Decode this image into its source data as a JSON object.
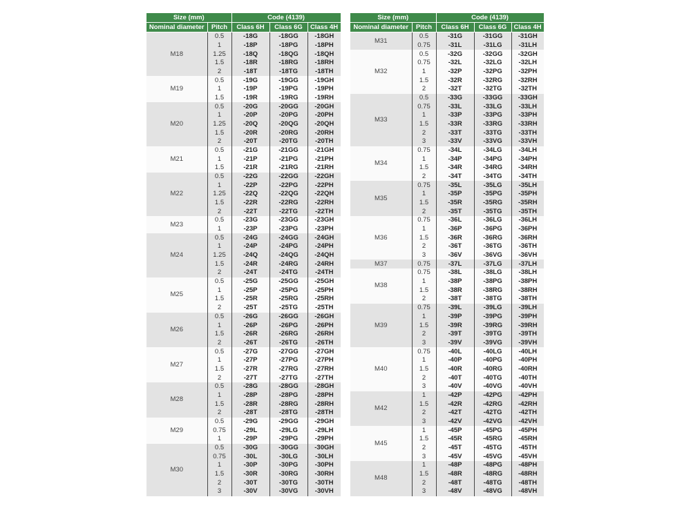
{
  "header": {
    "size": "Size (mm)",
    "code": "Code (4139)",
    "nominal": "Nominal diameter",
    "pitch": "Pitch",
    "c6h": "Class 6H",
    "c6g": "Class 6G",
    "c4h": "Class 4H"
  },
  "tables": [
    {
      "groups": [
        {
          "d": "M18",
          "rows": [
            [
              "0.5",
              "-18G",
              "-18GG",
              "-18GH"
            ],
            [
              "1",
              "-18P",
              "-18PG",
              "-18PH"
            ],
            [
              "1.25",
              "-18Q",
              "-18QG",
              "-18QH"
            ],
            [
              "1.5",
              "-18R",
              "-18RG",
              "-18RH"
            ],
            [
              "2",
              "-18T",
              "-18TG",
              "-18TH"
            ]
          ]
        },
        {
          "d": "M19",
          "rows": [
            [
              "0.5",
              "-19G",
              "-19GG",
              "-19GH"
            ],
            [
              "1",
              "-19P",
              "-19PG",
              "-19PH"
            ],
            [
              "1.5",
              "-19R",
              "-19RG",
              "-19RH"
            ]
          ]
        },
        {
          "d": "M20",
          "rows": [
            [
              "0.5",
              "-20G",
              "-20GG",
              "-20GH"
            ],
            [
              "1",
              "-20P",
              "-20PG",
              "-20PH"
            ],
            [
              "1.25",
              "-20Q",
              "-20QG",
              "-20QH"
            ],
            [
              "1.5",
              "-20R",
              "-20RG",
              "-20RH"
            ],
            [
              "2",
              "-20T",
              "-20TG",
              "-20TH"
            ]
          ]
        },
        {
          "d": "M21",
          "rows": [
            [
              "0.5",
              "-21G",
              "-21GG",
              "-21GH"
            ],
            [
              "1",
              "-21P",
              "-21PG",
              "-21PH"
            ],
            [
              "1.5",
              "-21R",
              "-21RG",
              "-21RH"
            ]
          ]
        },
        {
          "d": "M22",
          "rows": [
            [
              "0.5",
              "-22G",
              "-22GG",
              "-22GH"
            ],
            [
              "1",
              "-22P",
              "-22PG",
              "-22PH"
            ],
            [
              "1.25",
              "-22Q",
              "-22QG",
              "-22QH"
            ],
            [
              "1.5",
              "-22R",
              "-22RG",
              "-22RH"
            ],
            [
              "2",
              "-22T",
              "-22TG",
              "-22TH"
            ]
          ]
        },
        {
          "d": "M23",
          "rows": [
            [
              "0.5",
              "-23G",
              "-23GG",
              "-23GH"
            ],
            [
              "1",
              "-23P",
              "-23PG",
              "-23PH"
            ]
          ]
        },
        {
          "d": "M24",
          "rows": [
            [
              "0.5",
              "-24G",
              "-24GG",
              "-24GH"
            ],
            [
              "1",
              "-24P",
              "-24PG",
              "-24PH"
            ],
            [
              "1.25",
              "-24Q",
              "-24QG",
              "-24QH"
            ],
            [
              "1.5",
              "-24R",
              "-24RG",
              "-24RH"
            ],
            [
              "2",
              "-24T",
              "-24TG",
              "-24TH"
            ]
          ]
        },
        {
          "d": "M25",
          "rows": [
            [
              "0.5",
              "-25G",
              "-25GG",
              "-25GH"
            ],
            [
              "1",
              "-25P",
              "-25PG",
              "-25PH"
            ],
            [
              "1.5",
              "-25R",
              "-25RG",
              "-25RH"
            ],
            [
              "2",
              "-25T",
              "-25TG",
              "-25TH"
            ]
          ]
        },
        {
          "d": "M26",
          "rows": [
            [
              "0.5",
              "-26G",
              "-26GG",
              "-26GH"
            ],
            [
              "1",
              "-26P",
              "-26PG",
              "-26PH"
            ],
            [
              "1.5",
              "-26R",
              "-26RG",
              "-26RH"
            ],
            [
              "2",
              "-26T",
              "-26TG",
              "-26TH"
            ]
          ]
        },
        {
          "d": "M27",
          "rows": [
            [
              "0.5",
              "-27G",
              "-27GG",
              "-27GH"
            ],
            [
              "1",
              "-27P",
              "-27PG",
              "-27PH"
            ],
            [
              "1.5",
              "-27R",
              "-27RG",
              "-27RH"
            ],
            [
              "2",
              "-27T",
              "-27TG",
              "-27TH"
            ]
          ]
        },
        {
          "d": "M28",
          "rows": [
            [
              "0.5",
              "-28G",
              "-28GG",
              "-28GH"
            ],
            [
              "1",
              "-28P",
              "-28PG",
              "-28PH"
            ],
            [
              "1.5",
              "-28R",
              "-28RG",
              "-28RH"
            ],
            [
              "2",
              "-28T",
              "-28TG",
              "-28TH"
            ]
          ]
        },
        {
          "d": "M29",
          "rows": [
            [
              "0.5",
              "-29G",
              "-29GG",
              "-29GH"
            ],
            [
              "0.75",
              "-29L",
              "-29LG",
              "-29LH"
            ],
            [
              "1",
              "-29P",
              "-29PG",
              "-29PH"
            ]
          ]
        },
        {
          "d": "M30",
          "rows": [
            [
              "0.5",
              "-30G",
              "-30GG",
              "-30GH"
            ],
            [
              "0.75",
              "-30L",
              "-30LG",
              "-30LH"
            ],
            [
              "1",
              "-30P",
              "-30PG",
              "-30PH"
            ],
            [
              "1.5",
              "-30R",
              "-30RG",
              "-30RH"
            ],
            [
              "2",
              "-30T",
              "-30TG",
              "-30TH"
            ],
            [
              "3",
              "-30V",
              "-30VG",
              "-30VH"
            ]
          ]
        }
      ]
    },
    {
      "groups": [
        {
          "d": "M31",
          "rows": [
            [
              "0.5",
              "-31G",
              "-31GG",
              "-31GH"
            ],
            [
              "0.75",
              "-31L",
              "-31LG",
              "-31LH"
            ]
          ]
        },
        {
          "d": "M32",
          "rows": [
            [
              "0.5",
              "-32G",
              "-32GG",
              "-32GH"
            ],
            [
              "0.75",
              "-32L",
              "-32LG",
              "-32LH"
            ],
            [
              "1",
              "-32P",
              "-32PG",
              "-32PH"
            ],
            [
              "1.5",
              "-32R",
              "-32RG",
              "-32RH"
            ],
            [
              "2",
              "-32T",
              "-32TG",
              "-32TH"
            ]
          ]
        },
        {
          "d": "M33",
          "rows": [
            [
              "0.5",
              "-33G",
              "-33GG",
              "-33GH"
            ],
            [
              "0.75",
              "-33L",
              "-33LG",
              "-33LH"
            ],
            [
              "1",
              "-33P",
              "-33PG",
              "-33PH"
            ],
            [
              "1.5",
              "-33R",
              "-33RG",
              "-33RH"
            ],
            [
              "2",
              "-33T",
              "-33TG",
              "-33TH"
            ],
            [
              "3",
              "-33V",
              "-33VG",
              "-33VH"
            ]
          ]
        },
        {
          "d": "M34",
          "rows": [
            [
              "0.75",
              "-34L",
              "-34LG",
              "-34LH"
            ],
            [
              "1",
              "-34P",
              "-34PG",
              "-34PH"
            ],
            [
              "1.5",
              "-34R",
              "-34RG",
              "-34RH"
            ],
            [
              "2",
              "-34T",
              "-34TG",
              "-34TH"
            ]
          ]
        },
        {
          "d": "M35",
          "rows": [
            [
              "0.75",
              "-35L",
              "-35LG",
              "-35LH"
            ],
            [
              "1",
              "-35P",
              "-35PG",
              "-35PH"
            ],
            [
              "1.5",
              "-35R",
              "-35RG",
              "-35RH"
            ],
            [
              "2",
              "-35T",
              "-35TG",
              "-35TH"
            ]
          ]
        },
        {
          "d": "M36",
          "rows": [
            [
              "0.75",
              "-36L",
              "-36LG",
              "-36LH"
            ],
            [
              "1",
              "-36P",
              "-36PG",
              "-36PH"
            ],
            [
              "1.5",
              "-36R",
              "-36RG",
              "-36RH"
            ],
            [
              "2",
              "-36T",
              "-36TG",
              "-36TH"
            ],
            [
              "3",
              "-36V",
              "-36VG",
              "-36VH"
            ]
          ]
        },
        {
          "d": "M37",
          "rows": [
            [
              "0.75",
              "-37L",
              "-37LG",
              "-37LH"
            ]
          ]
        },
        {
          "d": "M38",
          "rows": [
            [
              "0.75",
              "-38L",
              "-38LG",
              "-38LH"
            ],
            [
              "1",
              "-38P",
              "-38PG",
              "-38PH"
            ],
            [
              "1.5",
              "-38R",
              "-38RG",
              "-38RH"
            ],
            [
              "2",
              "-38T",
              "-38TG",
              "-38TH"
            ]
          ]
        },
        {
          "d": "M39",
          "rows": [
            [
              "0.75",
              "-39L",
              "-39LG",
              "-39LH"
            ],
            [
              "1",
              "-39P",
              "-39PG",
              "-39PH"
            ],
            [
              "1.5",
              "-39R",
              "-39RG",
              "-39RH"
            ],
            [
              "2",
              "-39T",
              "-39TG",
              "-39TH"
            ],
            [
              "3",
              "-39V",
              "-39VG",
              "-39VH"
            ]
          ]
        },
        {
          "d": "M40",
          "rows": [
            [
              "0.75",
              "-40L",
              "-40LG",
              "-40LH"
            ],
            [
              "1",
              "-40P",
              "-40PG",
              "-40PH"
            ],
            [
              "1.5",
              "-40R",
              "-40RG",
              "-40RH"
            ],
            [
              "2",
              "-40T",
              "-40TG",
              "-40TH"
            ],
            [
              "3",
              "-40V",
              "-40VG",
              "-40VH"
            ]
          ]
        },
        {
          "d": "M42",
          "rows": [
            [
              "1",
              "-42P",
              "-42PG",
              "-42PH"
            ],
            [
              "1.5",
              "-42R",
              "-42RG",
              "-42RH"
            ],
            [
              "2",
              "-42T",
              "-42TG",
              "-42TH"
            ],
            [
              "3",
              "-42V",
              "-42VG",
              "-42VH"
            ]
          ]
        },
        {
          "d": "M45",
          "rows": [
            [
              "1",
              "-45P",
              "-45PG",
              "-45PH"
            ],
            [
              "1.5",
              "-45R",
              "-45RG",
              "-45RH"
            ],
            [
              "2",
              "-45T",
              "-45TG",
              "-45TH"
            ],
            [
              "3",
              "-45V",
              "-45VG",
              "-45VH"
            ]
          ]
        },
        {
          "d": "M48",
          "rows": [
            [
              "1",
              "-48P",
              "-48PG",
              "-48PH"
            ],
            [
              "1.5",
              "-48R",
              "-48RG",
              "-48RH"
            ],
            [
              "2",
              "-48T",
              "-48TG",
              "-48TH"
            ],
            [
              "3",
              "-48V",
              "-48VG",
              "-48VH"
            ]
          ]
        }
      ]
    }
  ]
}
